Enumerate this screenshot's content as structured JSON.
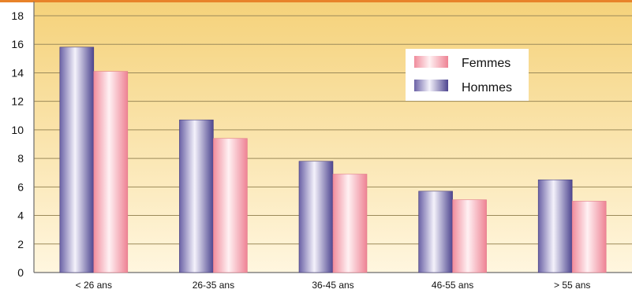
{
  "chart_data": {
    "type": "bar",
    "categories": [
      "< 26 ans",
      "26-35 ans",
      "36-45 ans",
      "46-55 ans",
      "> 55 ans"
    ],
    "series": [
      {
        "name": "Hommes",
        "values": [
          15.8,
          10.7,
          7.8,
          5.7,
          6.5
        ]
      },
      {
        "name": "Femmes",
        "values": [
          14.1,
          9.4,
          6.9,
          5.1,
          5.0
        ]
      }
    ],
    "ylim": [
      0,
      18
    ],
    "yticks": [
      0,
      2,
      4,
      6,
      8,
      10,
      12,
      14,
      16,
      18
    ],
    "grid": true,
    "legend_position": "top-right",
    "legend_order": [
      "Femmes",
      "Hommes"
    ],
    "colors": {
      "Hommes": "#7a6fb0",
      "Femmes": "#f2aab4",
      "background_top": "#f5d27a",
      "background_bottom": "#fff6df",
      "top_border": "#e8832a"
    }
  }
}
